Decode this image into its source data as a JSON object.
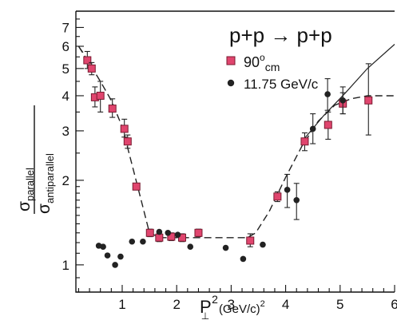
{
  "chart_data": {
    "type": "scatter",
    "title": "p+p → p+p",
    "xlabel_main": "P",
    "xlabel_sub": "⊥",
    "xlabel_rest": "2",
    "xlabel_unit": "(GeV/c)",
    "xlabel_unit_exp": "2",
    "ylabel_numerator": "σ",
    "ylabel_numerator_sub": "parallel",
    "ylabel_denominator": "σ",
    "ylabel_denominator_sub": "antiparallel",
    "xlim": [
      0.15,
      6.0
    ],
    "ylim": [
      0.8,
      8.0
    ],
    "yscale": "log",
    "x_ticks": [
      {
        "value": 1,
        "label": "1"
      },
      {
        "value": 2,
        "label": "2"
      },
      {
        "value": 3,
        "label": "3"
      },
      {
        "value": 4,
        "label": "4"
      },
      {
        "value": 5,
        "label": "5"
      },
      {
        "value": 6,
        "label": "6"
      }
    ],
    "y_ticks": [
      {
        "value": 1,
        "label": "1"
      },
      {
        "value": 2,
        "label": "2"
      },
      {
        "value": 3,
        "label": "3"
      },
      {
        "value": 4,
        "label": "4"
      },
      {
        "value": 5,
        "label": "5"
      },
      {
        "value": 6,
        "label": "6"
      },
      {
        "value": 7,
        "label": "7"
      }
    ],
    "legend": {
      "placement": "top-center",
      "entries": [
        {
          "series": "s90",
          "label_main": "90",
          "label_sup": "o",
          "label_sub": "cm"
        },
        {
          "series": "s1175",
          "label_main": "11.75 GeV/c",
          "label_sup": "",
          "label_sub": ""
        }
      ]
    },
    "series": [
      {
        "key": "s90",
        "marker": "square",
        "color": "#e0456e",
        "points": [
          {
            "x": 0.36,
            "y": 5.35,
            "lo": 5.0,
            "hi": 5.75
          },
          {
            "x": 0.44,
            "y": 5.0,
            "lo": 4.75,
            "hi": 5.25
          },
          {
            "x": 0.5,
            "y": 3.95,
            "lo": 3.65,
            "hi": 4.3
          },
          {
            "x": 0.6,
            "y": 4.0,
            "lo": 3.5,
            "hi": 4.5
          },
          {
            "x": 0.82,
            "y": 3.6,
            "lo": 3.35,
            "hi": 3.9
          },
          {
            "x": 1.04,
            "y": 3.05,
            "lo": 2.85,
            "hi": 3.3
          },
          {
            "x": 1.1,
            "y": 2.75,
            "lo": 2.6,
            "hi": 2.9
          },
          {
            "x": 1.26,
            "y": 1.9,
            "lo": 1.85,
            "hi": 1.95
          },
          {
            "x": 1.51,
            "y": 1.3,
            "lo": 1.26,
            "hi": 1.34
          },
          {
            "x": 1.68,
            "y": 1.25,
            "lo": 1.21,
            "hi": 1.29
          },
          {
            "x": 1.9,
            "y": 1.26,
            "lo": 1.22,
            "hi": 1.3
          },
          {
            "x": 2.1,
            "y": 1.25,
            "lo": 1.21,
            "hi": 1.29
          },
          {
            "x": 2.4,
            "y": 1.3,
            "lo": 1.26,
            "hi": 1.34
          },
          {
            "x": 3.35,
            "y": 1.22,
            "lo": 1.16,
            "hi": 1.29
          },
          {
            "x": 3.85,
            "y": 1.75,
            "lo": 1.68,
            "hi": 1.82
          },
          {
            "x": 4.35,
            "y": 2.75,
            "lo": 2.55,
            "hi": 2.95
          },
          {
            "x": 4.78,
            "y": 3.15,
            "lo": 2.8,
            "hi": 3.5
          },
          {
            "x": 5.05,
            "y": 3.75,
            "lo": 3.45,
            "hi": 4.1
          },
          {
            "x": 5.52,
            "y": 3.85,
            "lo": 2.9,
            "hi": 5.2
          }
        ]
      },
      {
        "key": "s1175",
        "marker": "circle",
        "color": "#222222",
        "points": [
          {
            "x": 0.57,
            "y": 1.17
          },
          {
            "x": 0.65,
            "y": 1.16
          },
          {
            "x": 0.73,
            "y": 1.08
          },
          {
            "x": 0.87,
            "y": 1.0
          },
          {
            "x": 0.97,
            "y": 1.07
          },
          {
            "x": 1.18,
            "y": 1.21
          },
          {
            "x": 1.38,
            "y": 1.21
          },
          {
            "x": 1.68,
            "y": 1.31
          },
          {
            "x": 1.84,
            "y": 1.3
          },
          {
            "x": 2.02,
            "y": 1.28
          },
          {
            "x": 2.25,
            "y": 1.16
          },
          {
            "x": 2.9,
            "y": 1.15
          },
          {
            "x": 3.22,
            "y": 1.05
          },
          {
            "x": 3.58,
            "y": 1.18
          },
          {
            "x": 4.03,
            "y": 1.85,
            "lo": 1.6,
            "hi": 2.1
          },
          {
            "x": 4.2,
            "y": 1.7,
            "lo": 1.45,
            "hi": 1.95
          },
          {
            "x": 4.5,
            "y": 3.05,
            "lo": 2.7,
            "hi": 3.45
          },
          {
            "x": 4.77,
            "y": 4.05,
            "lo": 3.55,
            "hi": 4.6
          },
          {
            "x": 5.05,
            "y": 3.85,
            "lo": 3.45,
            "hi": 4.3
          }
        ]
      }
    ],
    "fit_dashed": [
      [
        0.2,
        6.0
      ],
      [
        0.4,
        5.2
      ],
      [
        0.6,
        4.5
      ],
      [
        0.8,
        3.85
      ],
      [
        1.0,
        3.1
      ],
      [
        1.2,
        2.2
      ],
      [
        1.4,
        1.55
      ],
      [
        1.5,
        1.3
      ],
      [
        1.7,
        1.25
      ],
      [
        3.3,
        1.25
      ],
      [
        3.45,
        1.3
      ],
      [
        3.7,
        1.55
      ],
      [
        4.0,
        2.05
      ],
      [
        4.3,
        2.65
      ],
      [
        4.6,
        3.25
      ],
      [
        4.9,
        3.7
      ],
      [
        5.2,
        3.9
      ],
      [
        5.5,
        4.0
      ],
      [
        6.0,
        4.0
      ]
    ],
    "fit_solid": [
      [
        0.2,
        6.0
      ],
      [
        0.28,
        5.7
      ]
    ],
    "fit_solid_right": [
      [
        4.3,
        2.75
      ],
      [
        4.7,
        3.4
      ],
      [
        5.1,
        4.1
      ],
      [
        5.5,
        5.0
      ],
      [
        6.0,
        6.1
      ]
    ]
  }
}
